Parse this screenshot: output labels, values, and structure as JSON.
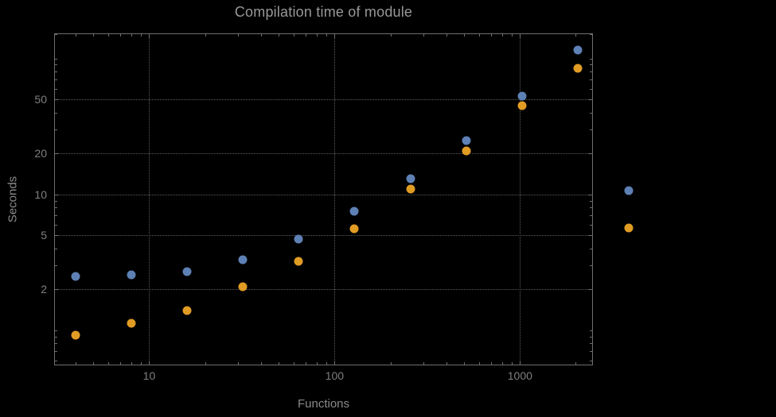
{
  "title": "Compilation time of module",
  "colors": {
    "background": "#000000",
    "frame": "#6e6e6e",
    "gridlines": "#5c5c5c",
    "title_text": "#989898",
    "tick_text": "#7f7f7f",
    "axis_label_text": "#8a8a8a",
    "series_blue": "#5e81b5",
    "series_orange": "#e19c24"
  },
  "chart_data": {
    "type": "scatter",
    "title": "Compilation time of module",
    "xlabel": "Functions",
    "ylabel": "Seconds",
    "x_scale": "log",
    "y_scale": "log",
    "xlim": [
      3.1,
      2450
    ],
    "ylim": [
      0.56,
      151
    ],
    "grid_style": "dotted",
    "legend_position": "right-of-plot",
    "x": [
      4,
      8,
      16,
      32,
      64,
      128,
      256,
      512,
      1024,
      2048
    ],
    "series": [
      {
        "name": "series-1-blue",
        "color": "#5e81b5",
        "values": [
          2.5,
          2.55,
          2.7,
          3.3,
          4.7,
          7.5,
          13,
          25,
          53,
          115
        ]
      },
      {
        "name": "series-2-orange",
        "color": "#e19c24",
        "values": [
          0.92,
          1.13,
          1.4,
          2.1,
          3.2,
          5.6,
          11,
          21,
          45,
          85
        ]
      }
    ],
    "x_ticks": [
      {
        "value": 10,
        "label": "10"
      },
      {
        "value": 100,
        "label": "100"
      },
      {
        "value": 1000,
        "label": "1000"
      }
    ],
    "y_ticks": [
      {
        "value": 2,
        "label": "2"
      },
      {
        "value": 5,
        "label": "5"
      },
      {
        "value": 10,
        "label": "10"
      },
      {
        "value": 20,
        "label": "20"
      },
      {
        "value": 50,
        "label": "50"
      }
    ],
    "x_gridlines": [
      10,
      100,
      1000
    ],
    "y_gridlines": [
      2,
      5,
      10,
      20,
      50
    ],
    "x_minor_ticks": [
      4,
      5,
      6,
      7,
      8,
      9,
      20,
      30,
      40,
      50,
      60,
      70,
      80,
      90,
      200,
      300,
      400,
      500,
      600,
      700,
      800,
      900,
      2000
    ],
    "y_minor_ticks": [
      0.6,
      0.7,
      0.8,
      0.9,
      1,
      3,
      4,
      6,
      7,
      8,
      9,
      30,
      40,
      60,
      70,
      80,
      90,
      100,
      150
    ]
  },
  "legend": {
    "items": [
      {
        "name": "legend-point-blue",
        "color": "#5e81b5"
      },
      {
        "name": "legend-point-orange",
        "color": "#e19c24"
      }
    ]
  }
}
